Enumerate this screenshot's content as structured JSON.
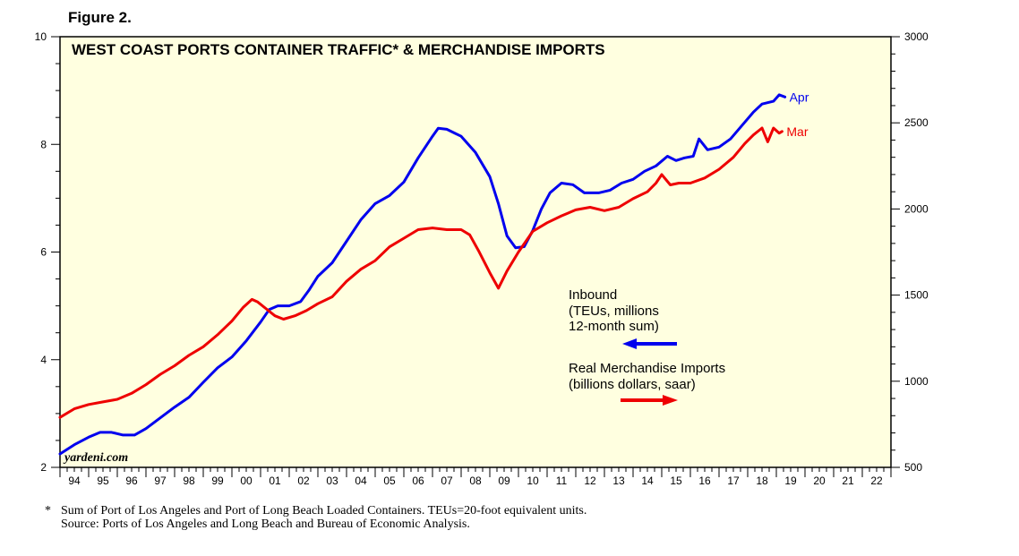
{
  "figure_label": "Figure 2.",
  "chart_data": {
    "type": "line",
    "title": "WEST COAST PORTS CONTAINER TRAFFIC* & MERCHANDISE IMPORTS",
    "left_axis": {
      "min": 2,
      "max": 10,
      "major_ticks": [
        2,
        4,
        6,
        8,
        10
      ],
      "labels": [
        "2",
        "4",
        "6",
        "8",
        "10"
      ],
      "unit": "TEUs, millions"
    },
    "right_axis": {
      "min": 500,
      "max": 3000,
      "major_ticks": [
        500,
        1000,
        1500,
        2000,
        2500,
        3000
      ],
      "labels": [
        "500",
        "1000",
        "1500",
        "2000",
        "2500",
        "3000"
      ],
      "unit": "billions dollars, saar"
    },
    "x_axis": {
      "min": 1994.0,
      "max": 2023.0,
      "year_labels": [
        "94",
        "95",
        "96",
        "97",
        "98",
        "99",
        "00",
        "01",
        "02",
        "03",
        "04",
        "05",
        "06",
        "07",
        "08",
        "09",
        "10",
        "11",
        "12",
        "13",
        "14",
        "15",
        "16",
        "17",
        "18",
        "19",
        "20",
        "21",
        "22"
      ],
      "first_year": 1994
    },
    "series": [
      {
        "name": "Inbound (TEUs, millions 12-month sum)",
        "axis": "left",
        "color": "#0000ee",
        "end_label": "Apr",
        "points": [
          [
            1994.0,
            2.25
          ],
          [
            1994.5,
            2.42
          ],
          [
            1995.0,
            2.56
          ],
          [
            1995.4,
            2.65
          ],
          [
            1995.8,
            2.65
          ],
          [
            1996.2,
            2.6
          ],
          [
            1996.6,
            2.6
          ],
          [
            1997.0,
            2.72
          ],
          [
            1997.5,
            2.92
          ],
          [
            1998.0,
            3.12
          ],
          [
            1998.5,
            3.3
          ],
          [
            1999.0,
            3.58
          ],
          [
            1999.5,
            3.85
          ],
          [
            2000.0,
            4.05
          ],
          [
            2000.5,
            4.35
          ],
          [
            2001.0,
            4.7
          ],
          [
            2001.3,
            4.93
          ],
          [
            2001.6,
            5.0
          ],
          [
            2002.0,
            5.0
          ],
          [
            2002.4,
            5.08
          ],
          [
            2002.7,
            5.3
          ],
          [
            2003.0,
            5.55
          ],
          [
            2003.5,
            5.8
          ],
          [
            2004.0,
            6.2
          ],
          [
            2004.5,
            6.6
          ],
          [
            2005.0,
            6.9
          ],
          [
            2005.5,
            7.05
          ],
          [
            2006.0,
            7.3
          ],
          [
            2006.5,
            7.75
          ],
          [
            2007.0,
            8.15
          ],
          [
            2007.2,
            8.3
          ],
          [
            2007.5,
            8.28
          ],
          [
            2008.0,
            8.15
          ],
          [
            2008.5,
            7.85
          ],
          [
            2009.0,
            7.4
          ],
          [
            2009.3,
            6.9
          ],
          [
            2009.6,
            6.3
          ],
          [
            2009.9,
            6.08
          ],
          [
            2010.2,
            6.1
          ],
          [
            2010.5,
            6.4
          ],
          [
            2010.8,
            6.8
          ],
          [
            2011.1,
            7.1
          ],
          [
            2011.5,
            7.28
          ],
          [
            2011.9,
            7.25
          ],
          [
            2012.3,
            7.1
          ],
          [
            2012.8,
            7.1
          ],
          [
            2013.2,
            7.15
          ],
          [
            2013.6,
            7.28
          ],
          [
            2014.0,
            7.35
          ],
          [
            2014.4,
            7.5
          ],
          [
            2014.8,
            7.6
          ],
          [
            2015.2,
            7.78
          ],
          [
            2015.5,
            7.7
          ],
          [
            2015.8,
            7.75
          ],
          [
            2016.1,
            7.78
          ],
          [
            2016.3,
            8.1
          ],
          [
            2016.6,
            7.9
          ],
          [
            2017.0,
            7.95
          ],
          [
            2017.4,
            8.1
          ],
          [
            2017.8,
            8.35
          ],
          [
            2018.2,
            8.6
          ],
          [
            2018.5,
            8.75
          ],
          [
            2018.9,
            8.8
          ],
          [
            2019.1,
            8.92
          ],
          [
            2019.3,
            8.88
          ]
        ]
      },
      {
        "name": "Real Merchandise Imports (billions dollars, saar)",
        "axis": "right",
        "color": "#ee0000",
        "end_label": "Mar",
        "points": [
          [
            1994.0,
            790
          ],
          [
            1994.5,
            840
          ],
          [
            1995.0,
            865
          ],
          [
            1995.5,
            880
          ],
          [
            1996.0,
            895
          ],
          [
            1996.5,
            930
          ],
          [
            1997.0,
            980
          ],
          [
            1997.5,
            1040
          ],
          [
            1998.0,
            1090
          ],
          [
            1998.5,
            1150
          ],
          [
            1999.0,
            1200
          ],
          [
            1999.5,
            1270
          ],
          [
            2000.0,
            1350
          ],
          [
            2000.4,
            1430
          ],
          [
            2000.7,
            1475
          ],
          [
            2000.9,
            1460
          ],
          [
            2001.2,
            1420
          ],
          [
            2001.5,
            1380
          ],
          [
            2001.8,
            1360
          ],
          [
            2002.2,
            1380
          ],
          [
            2002.6,
            1410
          ],
          [
            2003.0,
            1450
          ],
          [
            2003.5,
            1490
          ],
          [
            2004.0,
            1580
          ],
          [
            2004.5,
            1650
          ],
          [
            2005.0,
            1700
          ],
          [
            2005.5,
            1780
          ],
          [
            2006.0,
            1830
          ],
          [
            2006.5,
            1880
          ],
          [
            2007.0,
            1890
          ],
          [
            2007.5,
            1880
          ],
          [
            2008.0,
            1880
          ],
          [
            2008.3,
            1850
          ],
          [
            2008.6,
            1760
          ],
          [
            2009.0,
            1630
          ],
          [
            2009.3,
            1540
          ],
          [
            2009.6,
            1640
          ],
          [
            2010.0,
            1750
          ],
          [
            2010.5,
            1870
          ],
          [
            2011.0,
            1920
          ],
          [
            2011.5,
            1960
          ],
          [
            2012.0,
            1995
          ],
          [
            2012.5,
            2010
          ],
          [
            2013.0,
            1990
          ],
          [
            2013.5,
            2010
          ],
          [
            2014.0,
            2060
          ],
          [
            2014.5,
            2100
          ],
          [
            2014.8,
            2150
          ],
          [
            2015.0,
            2200
          ],
          [
            2015.3,
            2140
          ],
          [
            2015.6,
            2150
          ],
          [
            2016.0,
            2150
          ],
          [
            2016.5,
            2180
          ],
          [
            2017.0,
            2230
          ],
          [
            2017.5,
            2300
          ],
          [
            2017.9,
            2380
          ],
          [
            2018.2,
            2430
          ],
          [
            2018.5,
            2470
          ],
          [
            2018.7,
            2390
          ],
          [
            2018.9,
            2470
          ],
          [
            2019.1,
            2440
          ],
          [
            2019.2,
            2450
          ]
        ]
      }
    ],
    "legend": {
      "inbound_lines": [
        "Inbound",
        "(TEUs, millions",
        "12-month sum)"
      ],
      "imports_lines": [
        "Real Merchandise Imports",
        "(billions dollars, saar)"
      ]
    },
    "watermark": "yardeni.com"
  },
  "footnote": {
    "asterisk": "*",
    "line1": "Sum of Port of Los Angeles and Port of Long Beach Loaded Containers. TEUs=20-foot equivalent units.",
    "line2": "Source: Ports of Los Angeles and Long Beach and Bureau of Economic Analysis."
  }
}
